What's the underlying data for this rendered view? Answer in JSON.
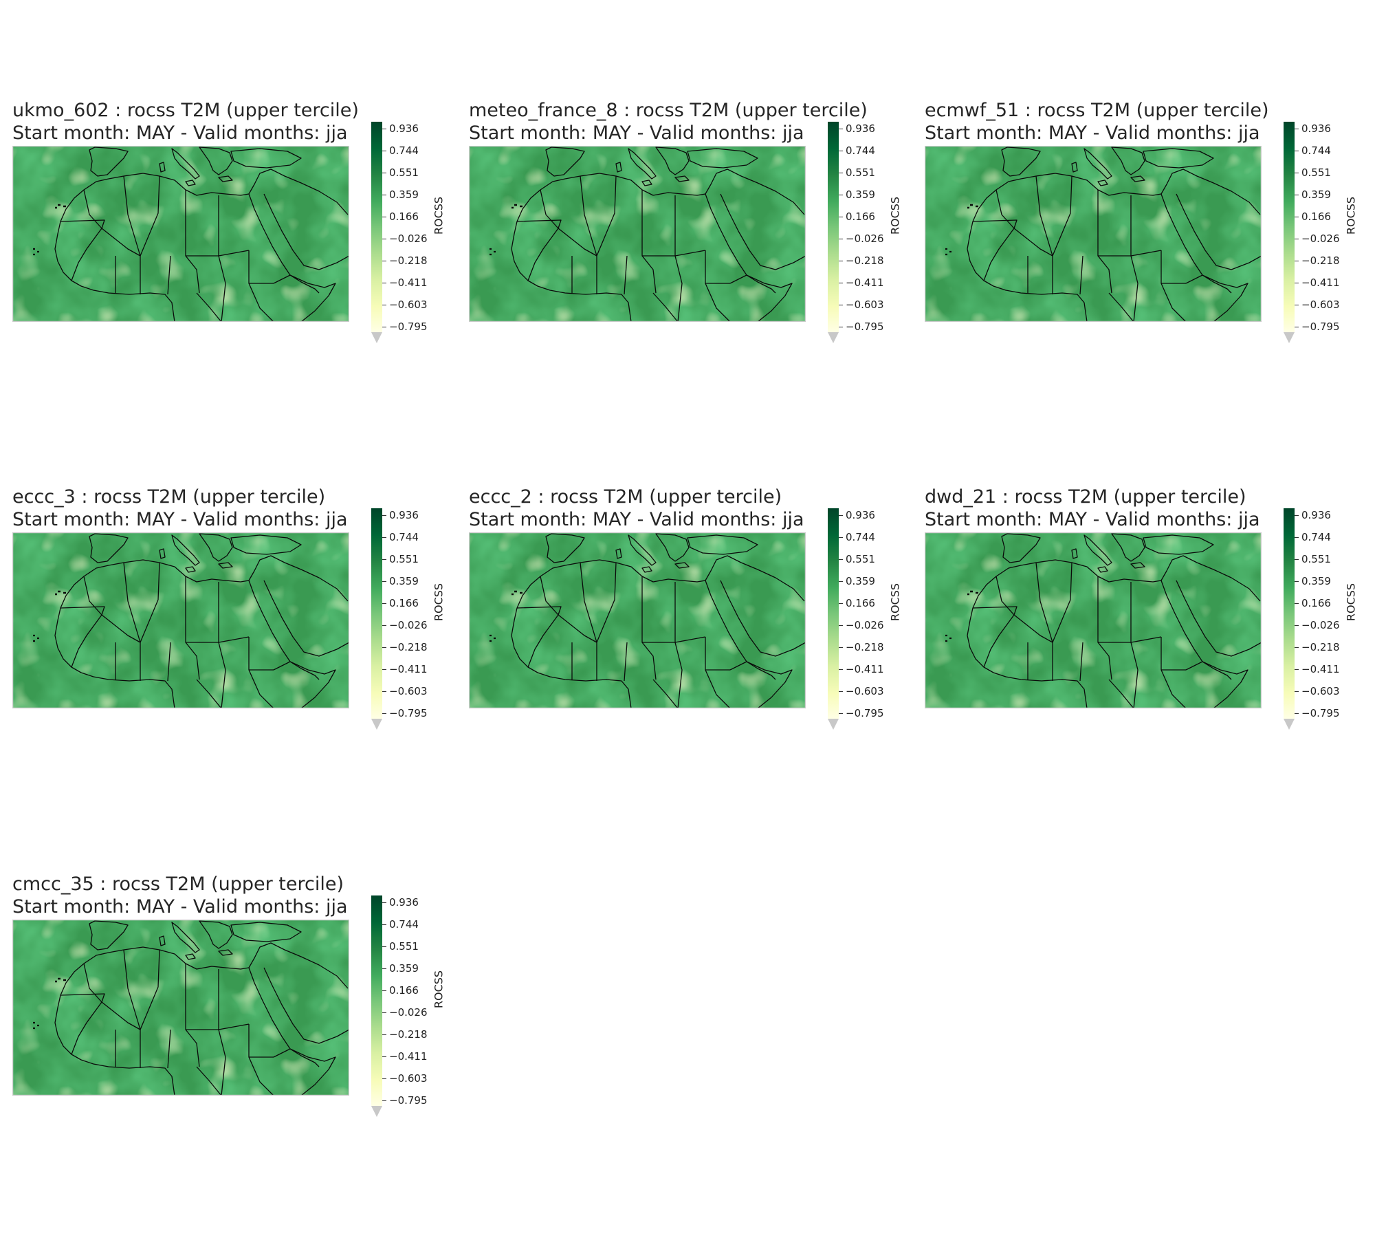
{
  "figure": {
    "colormap": [
      "#ffffe5",
      "#f7fcb9",
      "#d9f0a3",
      "#addd8e",
      "#78c679",
      "#41ab5d",
      "#238443",
      "#006837",
      "#004529"
    ],
    "colorbar": {
      "label": "ROCSS",
      "ticks": [
        "0.936",
        "0.744",
        "0.551",
        "0.359",
        "0.166",
        "−0.026",
        "−0.218",
        "−0.411",
        "−0.603",
        "−0.795"
      ]
    },
    "panels": [
      {
        "model": "ukmo_602",
        "title": "ukmo_602 : rocss  T2M (upper tercile)",
        "subtitle": "Start month: MAY - Valid months: jja"
      },
      {
        "model": "meteo_france_8",
        "title": "meteo_france_8 : rocss  T2M (upper tercile)",
        "subtitle": "Start month: MAY - Valid months: jja"
      },
      {
        "model": "ecmwf_51",
        "title": "ecmwf_51 : rocss  T2M (upper tercile)",
        "subtitle": "Start month: MAY - Valid months: jja"
      },
      {
        "model": "eccc_3",
        "title": "eccc_3 : rocss  T2M (upper tercile)",
        "subtitle": "Start month: MAY - Valid months: jja"
      },
      {
        "model": "eccc_2",
        "title": "eccc_2 : rocss  T2M (upper tercile)",
        "subtitle": "Start month: MAY - Valid months: jja"
      },
      {
        "model": "dwd_21",
        "title": "dwd_21 : rocss  T2M (upper tercile)",
        "subtitle": "Start month: MAY - Valid months: jja"
      },
      {
        "model": "cmcc_35",
        "title": "cmcc_35 : rocss  T2M (upper tercile)",
        "subtitle": "Start month: MAY - Valid months: jja"
      }
    ]
  }
}
